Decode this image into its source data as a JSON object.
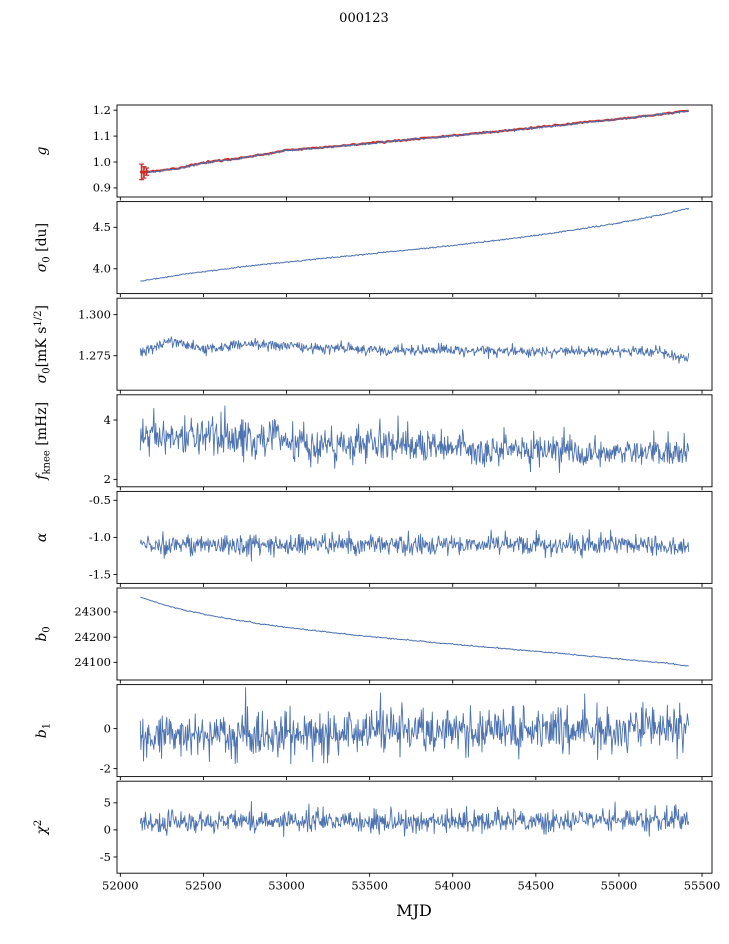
{
  "title": "000123",
  "xlabel": "MJD",
  "colors": {
    "line": "#4c72b0",
    "fit": "#cf2b27",
    "axis": "#000000"
  },
  "x_axis": {
    "lim": [
      51980,
      55560
    ],
    "ticks": [
      {
        "v": 52000,
        "label": "52000"
      },
      {
        "v": 52500,
        "label": "52500"
      },
      {
        "v": 53000,
        "label": "53000"
      },
      {
        "v": 53500,
        "label": "53500"
      },
      {
        "v": 54000,
        "label": "54000"
      },
      {
        "v": 54500,
        "label": "54500"
      },
      {
        "v": 55000,
        "label": "55000"
      },
      {
        "v": 55500,
        "label": "55500"
      }
    ]
  },
  "x_range": [
    52120,
    55420
  ],
  "chart_data": [
    {
      "name": "g",
      "type": "line",
      "ylabel_parts": [
        {
          "t": "g",
          "i": 1
        }
      ],
      "ylim": [
        0.865,
        1.22
      ],
      "yticks": [
        {
          "v": 0.9,
          "label": "0.9"
        },
        {
          "v": 1.0,
          "label": "1.0"
        },
        {
          "v": 1.1,
          "label": "1.1"
        },
        {
          "v": 1.2,
          "label": "1.2"
        }
      ],
      "series": [
        {
          "name": "gain-fit",
          "color": "#cf2b27",
          "lw": 2.2,
          "n": 300,
          "sigma": 0.0015,
          "trend": [
            [
              52120,
              0.96
            ],
            [
              52200,
              0.963
            ],
            [
              52350,
              0.976
            ],
            [
              52500,
              0.998
            ],
            [
              52700,
              1.013
            ],
            [
              53000,
              1.045
            ],
            [
              53300,
              1.061
            ],
            [
              53600,
              1.079
            ],
            [
              53900,
              1.096
            ],
            [
              54200,
              1.114
            ],
            [
              54500,
              1.133
            ],
            [
              54800,
              1.153
            ],
            [
              55000,
              1.166
            ],
            [
              55200,
              1.181
            ],
            [
              55420,
              1.198
            ]
          ]
        },
        {
          "name": "gain",
          "color": "#4c72b0",
          "lw": 1.0,
          "n": 700,
          "sigma": 0.002,
          "trend": [
            [
              52120,
              0.958
            ],
            [
              52200,
              0.962
            ],
            [
              52350,
              0.975
            ],
            [
              52500,
              0.997
            ],
            [
              52700,
              1.012
            ],
            [
              53000,
              1.044
            ],
            [
              53300,
              1.06
            ],
            [
              53600,
              1.078
            ],
            [
              53900,
              1.095
            ],
            [
              54200,
              1.113
            ],
            [
              54500,
              1.132
            ],
            [
              54800,
              1.152
            ],
            [
              55000,
              1.165
            ],
            [
              55200,
              1.18
            ],
            [
              55420,
              1.197
            ]
          ]
        }
      ],
      "errorbars": {
        "color": "#cf2b27",
        "points": [
          [
            52128,
            0.962,
            0.03
          ],
          [
            52142,
            0.96,
            0.022
          ],
          [
            52158,
            0.963,
            0.014
          ]
        ]
      }
    },
    {
      "name": "sigma0-du",
      "type": "line",
      "ylabel_parts": [
        {
          "t": "σ",
          "i": 1
        },
        {
          "t": "0",
          "sub": 1
        },
        {
          "t": " [du]"
        }
      ],
      "ylim": [
        3.7,
        4.81
      ],
      "yticks": [
        {
          "v": 4.0,
          "label": "4.0"
        },
        {
          "v": 4.5,
          "label": "4.5"
        }
      ],
      "series": [
        {
          "name": "sigma0-du",
          "color": "#4c72b0",
          "lw": 1.0,
          "n": 600,
          "sigma": 0.004,
          "trend": [
            [
              52120,
              3.85
            ],
            [
              52250,
              3.89
            ],
            [
              52400,
              3.94
            ],
            [
              52600,
              3.99
            ],
            [
              52800,
              4.04
            ],
            [
              53100,
              4.1
            ],
            [
              53400,
              4.16
            ],
            [
              53700,
              4.22
            ],
            [
              54000,
              4.28
            ],
            [
              54300,
              4.35
            ],
            [
              54600,
              4.43
            ],
            [
              54900,
              4.52
            ],
            [
              55100,
              4.59
            ],
            [
              55250,
              4.65
            ],
            [
              55420,
              4.73
            ]
          ]
        }
      ]
    },
    {
      "name": "sigma0-mk",
      "type": "line",
      "ylabel_parts": [
        {
          "t": "σ",
          "i": 1
        },
        {
          "t": "0",
          "sub": 1
        },
        {
          "t": "[mK s"
        },
        {
          "t": "1/2",
          "sup": 1
        },
        {
          "t": "]"
        }
      ],
      "ylim": [
        1.254,
        1.31
      ],
      "yticks": [
        {
          "v": 1.275,
          "label": "1.275"
        },
        {
          "v": 1.3,
          "label": "1.300"
        }
      ],
      "series": [
        {
          "name": "sigma0-mk",
          "color": "#4c72b0",
          "lw": 0.9,
          "n": 850,
          "sigma": 0.0016,
          "trend": [
            [
              52120,
              1.276
            ],
            [
              52200,
              1.28
            ],
            [
              52300,
              1.284
            ],
            [
              52380,
              1.282
            ],
            [
              52500,
              1.279
            ],
            [
              52700,
              1.2815
            ],
            [
              52900,
              1.282
            ],
            [
              53100,
              1.28
            ],
            [
              53400,
              1.279
            ],
            [
              53700,
              1.278
            ],
            [
              54000,
              1.2785
            ],
            [
              54300,
              1.278
            ],
            [
              54600,
              1.2775
            ],
            [
              54900,
              1.278
            ],
            [
              55100,
              1.2778
            ],
            [
              55250,
              1.277
            ],
            [
              55350,
              1.2745
            ],
            [
              55420,
              1.2738
            ]
          ]
        }
      ]
    },
    {
      "name": "fknee",
      "type": "line",
      "ylabel_parts": [
        {
          "t": "f",
          "i": 1
        },
        {
          "t": "knee",
          "sub": 1
        },
        {
          "t": " [mHz]"
        }
      ],
      "ylim": [
        1.75,
        4.85
      ],
      "yticks": [
        {
          "v": 2,
          "label": "2"
        },
        {
          "v": 4,
          "label": "4"
        }
      ],
      "series": [
        {
          "name": "fknee",
          "color": "#4c72b0",
          "lw": 0.9,
          "n": 850,
          "sigma": [
            0.36,
            0.22
          ],
          "trend": [
            [
              52120,
              3.55
            ],
            [
              52400,
              3.45
            ],
            [
              52800,
              3.35
            ],
            [
              53200,
              3.25
            ],
            [
              53600,
              3.15
            ],
            [
              54000,
              3.05
            ],
            [
              54400,
              3.0
            ],
            [
              54800,
              2.95
            ],
            [
              55420,
              2.92
            ]
          ]
        }
      ]
    },
    {
      "name": "alpha",
      "type": "line",
      "ylabel_parts": [
        {
          "t": "α",
          "i": 1
        }
      ],
      "ylim": [
        -1.62,
        -0.38
      ],
      "yticks": [
        {
          "v": -1.5,
          "label": "-1.5"
        },
        {
          "v": -1.0,
          "label": "-1.0"
        },
        {
          "v": -0.5,
          "label": "-0.5"
        }
      ],
      "series": [
        {
          "name": "alpha",
          "color": "#4c72b0",
          "lw": 0.9,
          "n": 850,
          "sigma": 0.068,
          "trend": [
            [
              52120,
              -1.1
            ],
            [
              55420,
              -1.1
            ]
          ]
        }
      ]
    },
    {
      "name": "b0",
      "type": "line",
      "ylabel_parts": [
        {
          "t": "b",
          "i": 1
        },
        {
          "t": "0",
          "sub": 1
        }
      ],
      "ylim": [
        24030,
        24395
      ],
      "yticks": [
        {
          "v": 24100,
          "label": "24100"
        },
        {
          "v": 24200,
          "label": "24200"
        },
        {
          "v": 24300,
          "label": "24300"
        }
      ],
      "series": [
        {
          "name": "b0",
          "color": "#4c72b0",
          "lw": 1.0,
          "n": 500,
          "sigma": 1.2,
          "trend": [
            [
              52120,
              24360
            ],
            [
              52250,
              24330
            ],
            [
              52400,
              24305
            ],
            [
              52600,
              24278
            ],
            [
              52850,
              24252
            ],
            [
              53100,
              24231
            ],
            [
              53400,
              24209
            ],
            [
              53700,
              24190
            ],
            [
              54000,
              24172
            ],
            [
              54300,
              24155
            ],
            [
              54600,
              24138
            ],
            [
              54900,
              24120
            ],
            [
              55150,
              24105
            ],
            [
              55300,
              24095
            ],
            [
              55420,
              24085
            ]
          ]
        }
      ]
    },
    {
      "name": "b1",
      "type": "line",
      "ylabel_parts": [
        {
          "t": "b",
          "i": 1
        },
        {
          "t": "1",
          "sub": 1
        }
      ],
      "ylim": [
        -2.4,
        2.2
      ],
      "yticks": [
        {
          "v": -2,
          "label": "-2"
        },
        {
          "v": 0,
          "label": "0"
        }
      ],
      "series": [
        {
          "name": "b1",
          "color": "#4c72b0",
          "lw": 0.9,
          "n": 850,
          "sigma": 0.55,
          "trend": [
            [
              52120,
              -0.38
            ],
            [
              52800,
              -0.28
            ],
            [
              53500,
              -0.12
            ],
            [
              54200,
              -0.05
            ],
            [
              55420,
              0.0
            ]
          ]
        }
      ]
    },
    {
      "name": "chi2",
      "type": "line",
      "ylabel_parts": [
        {
          "t": "χ",
          "i": 1
        },
        {
          "t": "2",
          "sup": 1
        }
      ],
      "ylim": [
        -8,
        9
      ],
      "yticks": [
        {
          "v": -5,
          "label": "-5"
        },
        {
          "v": 0,
          "label": "0"
        },
        {
          "v": 5,
          "label": "5"
        }
      ],
      "series": [
        {
          "name": "chi2",
          "color": "#4c72b0",
          "lw": 0.9,
          "n": 850,
          "sigma": 1.05,
          "trend": [
            [
              52120,
              1.3
            ],
            [
              53000,
              1.6
            ],
            [
              54000,
              1.7
            ],
            [
              55420,
              1.8
            ]
          ]
        }
      ]
    }
  ]
}
